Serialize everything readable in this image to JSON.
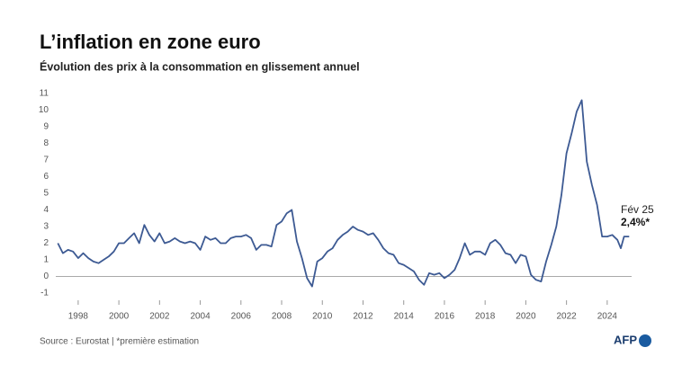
{
  "chart_data": {
    "type": "line",
    "title": "L’inflation en zone euro",
    "subtitle": "Évolution des prix à la consommation en glissement annuel",
    "source": "Source : Eurostat | *première estimation",
    "logo": "AFP",
    "annotation": {
      "date": "Fév 25",
      "value": "2,4%*"
    },
    "xlim": [
      1996.9,
      2025.2
    ],
    "ylim": [
      -1,
      11
    ],
    "xticks": [
      1998,
      2000,
      2002,
      2004,
      2006,
      2008,
      2010,
      2012,
      2014,
      2016,
      2018,
      2020,
      2022,
      2024
    ],
    "yticks": [
      -1,
      0,
      1,
      2,
      3,
      4,
      5,
      6,
      7,
      8,
      9,
      10,
      11
    ],
    "grid": false,
    "series": [
      {
        "name": "Inflation",
        "color": "#3d5a93",
        "x": [
          1997,
          1997.25,
          1997.5,
          1997.75,
          1998,
          1998.25,
          1998.5,
          1998.75,
          1999,
          1999.25,
          1999.5,
          1999.75,
          2000,
          2000.25,
          2000.5,
          2000.75,
          2001,
          2001.25,
          2001.5,
          2001.75,
          2002,
          2002.25,
          2002.5,
          2002.75,
          2003,
          2003.25,
          2003.5,
          2003.75,
          2004,
          2004.25,
          2004.5,
          2004.75,
          2005,
          2005.25,
          2005.5,
          2005.75,
          2006,
          2006.25,
          2006.5,
          2006.75,
          2007,
          2007.25,
          2007.5,
          2007.75,
          2008,
          2008.25,
          2008.5,
          2008.75,
          2009,
          2009.25,
          2009.5,
          2009.75,
          2010,
          2010.25,
          2010.5,
          2010.75,
          2011,
          2011.25,
          2011.5,
          2011.75,
          2012,
          2012.25,
          2012.5,
          2012.75,
          2013,
          2013.25,
          2013.5,
          2013.75,
          2014,
          2014.25,
          2014.5,
          2014.75,
          2015,
          2015.25,
          2015.5,
          2015.75,
          2016,
          2016.25,
          2016.5,
          2016.75,
          2017,
          2017.25,
          2017.5,
          2017.75,
          2018,
          2018.25,
          2018.5,
          2018.75,
          2019,
          2019.25,
          2019.5,
          2019.75,
          2020,
          2020.25,
          2020.5,
          2020.75,
          2021,
          2021.25,
          2021.5,
          2021.75,
          2022,
          2022.25,
          2022.5,
          2022.75,
          2023,
          2023.25,
          2023.5,
          2023.75,
          2024,
          2024.25,
          2024.5,
          2024.67,
          2024.83,
          2025,
          2025.08
        ],
        "values": [
          2.0,
          1.4,
          1.6,
          1.5,
          1.1,
          1.4,
          1.1,
          0.9,
          0.8,
          1.0,
          1.2,
          1.5,
          2.0,
          2.0,
          2.3,
          2.6,
          2.0,
          3.1,
          2.5,
          2.1,
          2.6,
          2.0,
          2.1,
          2.3,
          2.1,
          2.0,
          2.1,
          2.0,
          1.6,
          2.4,
          2.2,
          2.3,
          2.0,
          2.0,
          2.3,
          2.4,
          2.4,
          2.5,
          2.3,
          1.6,
          1.9,
          1.9,
          1.8,
          3.1,
          3.3,
          3.8,
          4.0,
          2.1,
          1.1,
          -0.1,
          -0.6,
          0.9,
          1.1,
          1.5,
          1.7,
          2.2,
          2.5,
          2.7,
          3.0,
          2.8,
          2.7,
          2.5,
          2.6,
          2.2,
          1.7,
          1.4,
          1.3,
          0.8,
          0.7,
          0.5,
          0.3,
          -0.2,
          -0.5,
          0.2,
          0.1,
          0.2,
          -0.1,
          0.1,
          0.4,
          1.1,
          2.0,
          1.3,
          1.5,
          1.5,
          1.3,
          2.0,
          2.2,
          1.9,
          1.4,
          1.3,
          0.8,
          1.3,
          1.2,
          0.1,
          -0.2,
          -0.3,
          0.9,
          1.9,
          3.0,
          4.9,
          7.4,
          8.6,
          9.9,
          10.6,
          6.9,
          5.5,
          4.3,
          2.4,
          2.4,
          2.5,
          2.2,
          1.7,
          2.4,
          2.4,
          2.4
        ]
      }
    ]
  }
}
